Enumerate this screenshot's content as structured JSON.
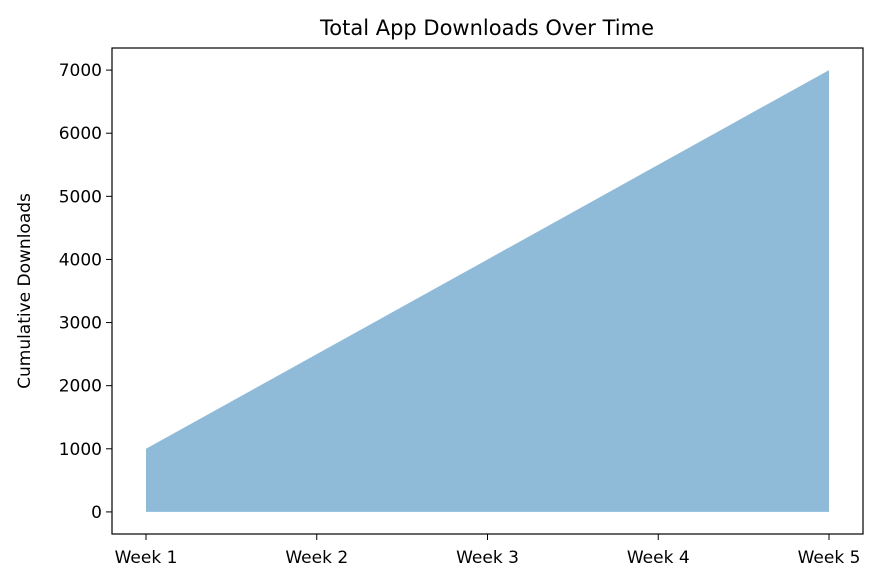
{
  "chart_data": {
    "type": "area",
    "title": "Total App Downloads Over Time",
    "xlabel": "",
    "ylabel": "Cumulative Downloads",
    "categories": [
      "Week 1",
      "Week 2",
      "Week 3",
      "Week 4",
      "Week 5"
    ],
    "series": [
      {
        "values": [
          1000,
          2500,
          4000,
          5500,
          7000
        ]
      }
    ],
    "ylim": [
      -350,
      7350
    ],
    "yticks": [
      0,
      1000,
      2000,
      3000,
      4000,
      5000,
      6000,
      7000
    ],
    "grid": false,
    "legend": "none",
    "fill_color": "#1f77b4",
    "fill_opacity": 0.5
  }
}
